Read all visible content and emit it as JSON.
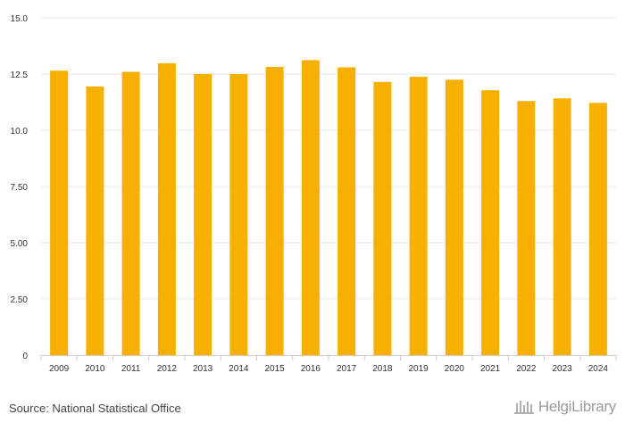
{
  "chart_data": {
    "type": "bar",
    "title": "",
    "xlabel": "",
    "ylabel": "",
    "categories": [
      "2009",
      "2010",
      "2011",
      "2012",
      "2013",
      "2014",
      "2015",
      "2016",
      "2017",
      "2018",
      "2019",
      "2020",
      "2021",
      "2022",
      "2023",
      "2024"
    ],
    "values": [
      12.65,
      11.95,
      12.6,
      12.98,
      12.5,
      12.5,
      12.82,
      13.12,
      12.8,
      12.15,
      12.38,
      12.25,
      11.78,
      11.3,
      11.42,
      11.22
    ],
    "ylim": [
      0,
      15
    ],
    "yticks": [
      0,
      2.5,
      5,
      7.5,
      10,
      12.5,
      15
    ],
    "ytick_labels": [
      "0",
      "2.50",
      "5.00",
      "7.50",
      "10.0",
      "12.5",
      "15.0"
    ],
    "grid": true,
    "bar_color": "#f7b000"
  },
  "footer": {
    "source": "Source: National Statistical Office",
    "brand_text": "HelgiLibrary"
  }
}
